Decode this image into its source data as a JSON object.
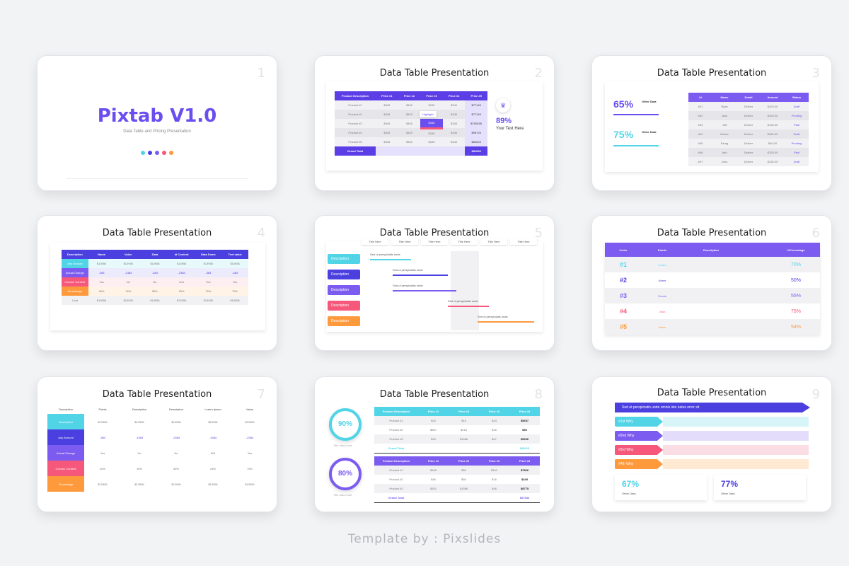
{
  "brand": {
    "name": "Pixtab V1.0",
    "sub": "Data Table and Pricing Presentation"
  },
  "slide_title": "Data Table Presentation",
  "nums": [
    "1",
    "2",
    "3",
    "4",
    "5",
    "6",
    "7",
    "8",
    "9"
  ],
  "s2": {
    "head": [
      "Product Description",
      "Price #1",
      "Price #2",
      "Price #3",
      "Price #4",
      "Price #5"
    ],
    "rows": [
      [
        "Product #1",
        "$345",
        "$345",
        "$345",
        "$345",
        "$77145"
      ],
      [
        "Product #2",
        "$345",
        "$345",
        "$345",
        "$345",
        "$77145"
      ],
      [
        "Product #3",
        "$345",
        "$345",
        "$345",
        "$345",
        "$792495"
      ],
      [
        "Product #4",
        "$345",
        "$345",
        "$345",
        "$345",
        "$95725"
      ],
      [
        "Product #5",
        "$345",
        "$345",
        "$345",
        "$345",
        "$81625"
      ]
    ],
    "total_label": "Grand Total",
    "total_val": "$81630",
    "highlight": "Highlight",
    "pct": "89%",
    "pct_text": "Your Text Here"
  },
  "s3": {
    "p1": "65%",
    "p2": "75%",
    "od": "Other Data",
    "head": [
      "Id",
      "Name",
      "Detail",
      "Amount",
      "Status"
    ],
    "rows": [
      [
        "#01",
        "Ryan",
        "Deliver",
        "$400.00",
        "Draft"
      ],
      [
        "#02",
        "Jack",
        "Deliver",
        "$320.00",
        "Pending"
      ],
      [
        "#03",
        "Jeff",
        "Deliver",
        "$130.00",
        "Paid"
      ],
      [
        "#04",
        "Dexter",
        "Deliver",
        "$440.00",
        "Draft"
      ],
      [
        "#05",
        "Ezrag",
        "Deliver",
        "$40.00",
        "Pending"
      ],
      [
        "#06",
        "Ash",
        "Deliver",
        "$320.00",
        "Paid"
      ],
      [
        "#07",
        "Jhon",
        "Deliver",
        "$230.00",
        "Draft"
      ]
    ]
  },
  "s4": {
    "head": [
      "Description",
      "Name",
      "Value",
      "Data",
      "Id Content",
      "Data Some",
      "Text value"
    ],
    "rows": [
      [
        "Any Amount",
        "$13956",
        "$13956",
        "$13956",
        "$13956",
        "$13956",
        "$13956"
      ],
      [
        "Actual Change",
        "-384",
        "-1384",
        "-384",
        "-2384",
        "-384",
        "-384"
      ],
      [
        "Column Content",
        "Yes",
        "No",
        "No",
        "N/A",
        "Yes",
        "Yes"
      ],
      [
        "Percentage",
        "45%",
        "15%",
        "55%",
        "25%",
        "75%",
        "75%"
      ],
      [
        "Cost",
        "$13956",
        "$13956",
        "$13956",
        "$13956",
        "$13956",
        "$13956"
      ]
    ]
  },
  "s5": {
    "titles": [
      "Title Here",
      "Title Here",
      "Title Here",
      "Title Here",
      "Title Here",
      "Title Here"
    ],
    "desc": "Description",
    "bars": [
      "Sed ut perspiciatis unde",
      "Sed ut perspiciatis unde",
      "Sed ut perspiciatis unde",
      "Sed ut perspiciatis unde",
      "Sed ut perspiciatis unde"
    ]
  },
  "s6": {
    "head": [
      "Order",
      "Points",
      "Description",
      "",
      "%Precentage"
    ],
    "rows": [
      [
        "#1",
        "Lorem",
        "70%"
      ],
      [
        "#2",
        "Name",
        "50%"
      ],
      [
        "#3",
        "Omnis",
        "55%"
      ],
      [
        "#4",
        "Jhon",
        "75%"
      ],
      [
        "#5",
        "Name",
        "54%"
      ]
    ]
  },
  "s7": {
    "head": [
      "Description",
      "Points",
      "Description",
      "Description",
      "Lorem Ipsum",
      "Value"
    ],
    "rows": [
      [
        "Description",
        "$13956",
        "$13956",
        "$13956",
        "$13956",
        "$13956"
      ],
      [
        "Any Amount",
        "-384",
        "-1384",
        "-2384",
        "-1584",
        "-2384"
      ],
      [
        "Actual Change",
        "Yes",
        "No",
        "No",
        "N/A",
        "Yes"
      ],
      [
        "Column Content",
        "45%",
        "15%",
        "55%",
        "25%",
        "75%"
      ],
      [
        "Percentage",
        "$13956",
        "$13956",
        "$13956",
        "$13956",
        "$13956"
      ]
    ]
  },
  "s8": {
    "c1": "90%",
    "c2": "80%",
    "ct": "Title data chart",
    "head": [
      "Product Description",
      "Price #1",
      "Price #2",
      "Price #3",
      "Price #4"
    ],
    "t1": [
      [
        "Product #1",
        "$20",
        "$16",
        "$34",
        "$5657"
      ],
      [
        "Product #2",
        "$567",
        "$416",
        "$16",
        "$56"
      ],
      [
        "Product #3",
        "$20",
        "$1586",
        "$47",
        "$5656"
      ]
    ],
    "t1_total": [
      "Grand Total",
      "$45415"
    ],
    "t2": [
      [
        "Product #1",
        "$345",
        "$56",
        "$341",
        "$7866"
      ],
      [
        "Product #2",
        "$46",
        "$56",
        "$16",
        "$345"
      ],
      [
        "Product #3",
        "$341",
        "$1586",
        "$46",
        "$8775"
      ]
    ],
    "t2_total": [
      "Grand Total",
      "$67544"
    ]
  },
  "s9": {
    "banner": "Sed ut perspiciatis unde omnis iste natus error sit",
    "whys": [
      "#1st Why",
      "#2nd Why",
      "#3rd Why",
      "#4th Why"
    ],
    "p1": "67%",
    "p2": "77%",
    "od": "Other Data"
  },
  "footer": "Template by : Pixslides",
  "colors": {
    "indigo": "#4b3fe0",
    "purple": "#7c5cf0",
    "cyan": "#50d4e6",
    "pink": "#f5587b",
    "orange": "#ff9a3c"
  }
}
